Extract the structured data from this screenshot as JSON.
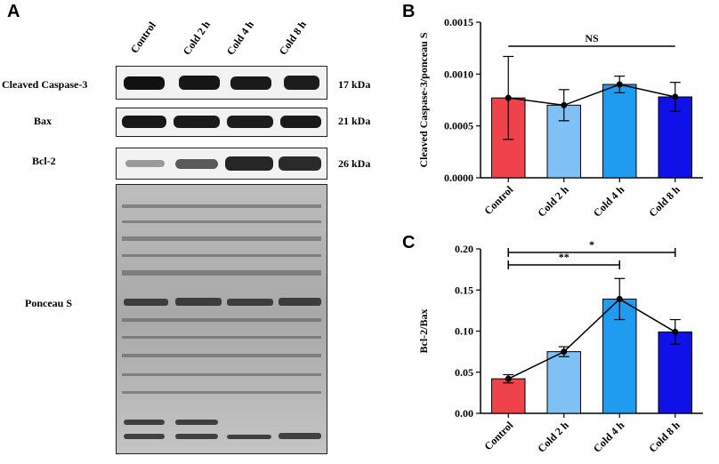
{
  "panels": {
    "a": "A",
    "b": "B",
    "c": "C"
  },
  "blot": {
    "lanes": [
      "Control",
      "Cold 2 h",
      "Cold 4 h",
      "Cold 8 h"
    ],
    "rows": [
      {
        "label": "Cleaved Caspase-3",
        "kda": "17 kDa"
      },
      {
        "label": "Bax",
        "kda": "21 kDa"
      },
      {
        "label": "Bcl-2",
        "kda": "26 kDa"
      },
      {
        "label": "Ponceau S",
        "kda": ""
      }
    ]
  },
  "colors": {
    "control": "#f0424a",
    "cold2": "#7fc0f5",
    "cold4": "#1f9bf0",
    "cold8": "#1010e8"
  },
  "chart_data": [
    {
      "type": "bar",
      "panel": "B",
      "categories": [
        "Control",
        "Cold 2 h",
        "Cold 4 h",
        "Cold 8 h"
      ],
      "values": [
        0.00077,
        0.0007,
        0.0009,
        0.00078
      ],
      "errors": [
        0.0004,
        0.00015,
        8e-05,
        0.00014
      ],
      "ylabel": "Cleaved Caspase-3/ponceau S",
      "ylim": [
        0,
        0.0015
      ],
      "yticks": [
        "0.0000",
        "0.0005",
        "0.0010",
        "0.0015"
      ],
      "overlay_line": true,
      "significance": [
        {
          "from": 0,
          "to": 3,
          "label": "NS"
        }
      ]
    },
    {
      "type": "bar",
      "panel": "C",
      "categories": [
        "Control",
        "Cold 2 h",
        "Cold 4 h",
        "Cold 8 h"
      ],
      "values": [
        0.042,
        0.075,
        0.139,
        0.099
      ],
      "errors": [
        0.005,
        0.006,
        0.025,
        0.015
      ],
      "ylabel": "Bcl-2/Bax",
      "ylim": [
        0,
        0.2
      ],
      "yticks": [
        "0.00",
        "0.05",
        "0.10",
        "0.15",
        "0.20"
      ],
      "overlay_line": true,
      "significance": [
        {
          "from": 0,
          "to": 3,
          "label": "*"
        },
        {
          "from": 0,
          "to": 2,
          "label": "**"
        }
      ]
    }
  ]
}
